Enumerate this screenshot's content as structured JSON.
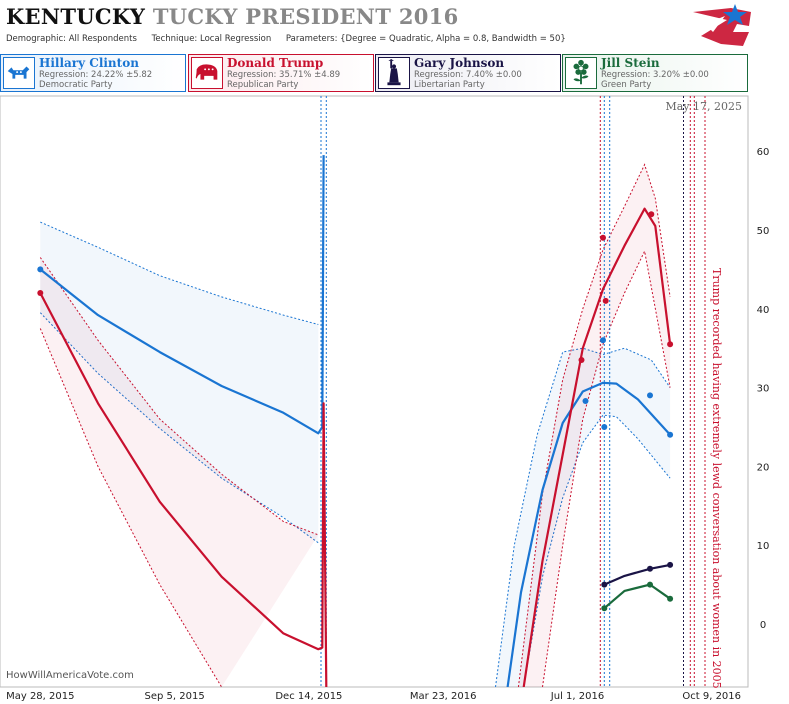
{
  "header": {
    "title_state": "KENTUCKY",
    "title_rest": "TUCKY PRESIDENT 2016",
    "demographic": "Demographic: All Respondents",
    "technique": "Technique: Local Regression",
    "parameters": "Parameters: {Degree = Quadratic, Alpha = 0.8, Bandwidth = 50}"
  },
  "candidates": [
    {
      "name": "Hillary Clinton",
      "regression": "Regression: 24.22% ±5.82",
      "party": "Democratic Party",
      "color": "#1a75d2",
      "bg": "#e8f1fb",
      "icon": "donkey-icon"
    },
    {
      "name": "Donald Trump",
      "regression": "Regression: 35.71% ±4.89",
      "party": "Republican Party",
      "color": "#c8102e",
      "bg": "#fbe9ec",
      "icon": "elephant-icon"
    },
    {
      "name": "Gary Johnson",
      "regression": "Regression: 7.40% ±0.00",
      "party": "Libertarian Party",
      "color": "#1a1446",
      "bg": "#ececf3",
      "icon": "statue-of-liberty-icon"
    },
    {
      "name": "Jill Stein",
      "regression": "Regression: 3.20% ±0.00",
      "party": "Green Party",
      "color": "#1a6b3c",
      "bg": "#e8f3ec",
      "icon": "flower-icon"
    }
  ],
  "chart_meta": {
    "date_label": "May 17, 2025",
    "source": "HowWillAmericaVote.com",
    "annotation": "Trump recorded having extremely lewd conversation about women in 2005",
    "annotation_color": "#c8102e",
    "grid": false
  },
  "chart_data": {
    "type": "line",
    "x_axis": {
      "type": "date",
      "ticks": [
        "May 28, 2015",
        "Sep 5, 2015",
        "Dec 14, 2015",
        "Mar 23, 2016",
        "Jul 1, 2016",
        "Oct 9, 2016"
      ],
      "range": [
        "2015-04-28",
        "2016-11-05"
      ]
    },
    "y_axis": {
      "ticks": [
        0,
        10,
        20,
        30,
        40,
        50,
        60
      ],
      "range": [
        -8,
        67
      ],
      "position": "right"
    },
    "series": [
      {
        "name": "Hillary Clinton",
        "color": "#1a75d2",
        "points": [
          [
            "2015-05-28",
            45
          ],
          [
            "2016-07-07",
            28.3
          ],
          [
            "2016-07-20",
            36
          ],
          [
            "2016-07-21",
            25
          ],
          [
            "2016-08-24",
            29
          ],
          [
            "2016-09-08",
            24
          ]
        ],
        "trend": [
          [
            "2015-05-28",
            45
          ],
          [
            "2015-07-10",
            39.2
          ],
          [
            "2015-08-25",
            34.5
          ],
          [
            "2015-10-10",
            30.2
          ],
          [
            "2015-11-25",
            26.8
          ],
          [
            "2015-12-21",
            24.2
          ],
          [
            "2015-12-24",
            25
          ],
          [
            "2015-12-25",
            59.5
          ]
        ],
        "lower": [
          [
            "2015-05-28",
            39.5
          ],
          [
            "2015-07-10",
            31.8
          ],
          [
            "2015-08-25",
            24.8
          ],
          [
            "2015-10-10",
            18.5
          ],
          [
            "2015-11-25",
            13.5
          ],
          [
            "2015-12-21",
            10.3
          ]
        ],
        "upper": [
          [
            "2015-05-28",
            51
          ],
          [
            "2015-07-10",
            47.8
          ],
          [
            "2015-08-25",
            44.2
          ],
          [
            "2015-10-10",
            41.5
          ],
          [
            "2015-11-25",
            39.2
          ],
          [
            "2015-12-21",
            38
          ]
        ],
        "trend2": [
          [
            "2016-05-10",
            -8
          ],
          [
            "2016-05-20",
            4
          ],
          [
            "2016-06-05",
            17
          ],
          [
            "2016-06-20",
            25.5
          ],
          [
            "2016-07-05",
            29.5
          ],
          [
            "2016-07-20",
            30.6
          ],
          [
            "2016-07-30",
            30.5
          ],
          [
            "2016-08-15",
            28.5
          ],
          [
            "2016-09-08",
            24
          ]
        ],
        "lower2": [
          [
            "2016-05-22",
            -8
          ],
          [
            "2016-06-05",
            6
          ],
          [
            "2016-06-20",
            16
          ],
          [
            "2016-07-05",
            23
          ],
          [
            "2016-07-20",
            26.5
          ],
          [
            "2016-07-30",
            26.3
          ],
          [
            "2016-08-15",
            23.5
          ],
          [
            "2016-09-08",
            18.5
          ]
        ],
        "upper2": [
          [
            "2016-05-01",
            -8
          ],
          [
            "2016-05-15",
            10
          ],
          [
            "2016-06-01",
            24
          ],
          [
            "2016-06-20",
            34.5
          ],
          [
            "2016-07-05",
            35
          ],
          [
            "2016-07-20",
            34.2
          ],
          [
            "2016-08-05",
            35
          ],
          [
            "2016-08-25",
            33.5
          ],
          [
            "2016-09-08",
            30
          ]
        ]
      },
      {
        "name": "Donald Trump",
        "color": "#c8102e",
        "points": [
          [
            "2015-05-28",
            42
          ],
          [
            "2016-07-04",
            33.5
          ],
          [
            "2016-07-20",
            49
          ],
          [
            "2016-07-22",
            41
          ],
          [
            "2016-08-25",
            52
          ],
          [
            "2016-09-08",
            35.5
          ]
        ],
        "trend": [
          [
            "2015-05-28",
            42
          ],
          [
            "2015-07-10",
            28
          ],
          [
            "2015-08-25",
            15.5
          ],
          [
            "2015-10-10",
            6
          ],
          [
            "2015-11-25",
            -1.2
          ],
          [
            "2015-12-21",
            -3.2
          ],
          [
            "2015-12-24",
            -3
          ],
          [
            "2015-12-25",
            28
          ],
          [
            "2015-12-27",
            -8
          ]
        ],
        "lower": [
          [
            "2015-05-28",
            37.5
          ],
          [
            "2015-07-10",
            20
          ],
          [
            "2015-08-25",
            5
          ],
          [
            "2015-10-10",
            -8
          ]
        ],
        "upper": [
          [
            "2015-05-28",
            46.5
          ],
          [
            "2015-07-10",
            36
          ],
          [
            "2015-08-25",
            26
          ],
          [
            "2015-10-10",
            19
          ],
          [
            "2015-11-25",
            13
          ],
          [
            "2015-12-21",
            11.3
          ]
        ],
        "trend2": [
          [
            "2016-05-22",
            -8
          ],
          [
            "2016-06-05",
            8
          ],
          [
            "2016-06-20",
            21.5
          ],
          [
            "2016-07-05",
            35
          ],
          [
            "2016-07-20",
            42.5
          ],
          [
            "2016-08-05",
            48
          ],
          [
            "2016-08-20",
            52.7
          ],
          [
            "2016-08-28",
            50.5
          ],
          [
            "2016-09-08",
            35.5
          ]
        ],
        "lower2": [
          [
            "2016-06-05",
            -8
          ],
          [
            "2016-06-20",
            10
          ],
          [
            "2016-07-05",
            26
          ],
          [
            "2016-07-20",
            35.5
          ],
          [
            "2016-08-05",
            42
          ],
          [
            "2016-08-20",
            47.3
          ],
          [
            "2016-09-08",
            30
          ]
        ],
        "upper2": [
          [
            "2016-05-18",
            -8
          ],
          [
            "2016-06-05",
            16.5
          ],
          [
            "2016-06-20",
            31
          ],
          [
            "2016-07-05",
            40
          ],
          [
            "2016-07-20",
            47.5
          ],
          [
            "2016-08-05",
            53
          ],
          [
            "2016-08-20",
            58.3
          ],
          [
            "2016-08-28",
            54
          ],
          [
            "2016-09-08",
            41.5
          ]
        ]
      },
      {
        "name": "Gary Johnson",
        "color": "#1a1446",
        "points": [
          [
            "2016-07-21",
            5
          ],
          [
            "2016-08-24",
            7
          ],
          [
            "2016-09-08",
            7.5
          ]
        ],
        "trend2": [
          [
            "2016-07-21",
            5
          ],
          [
            "2016-08-05",
            6.1
          ],
          [
            "2016-08-24",
            7
          ],
          [
            "2016-09-08",
            7.5
          ]
        ]
      },
      {
        "name": "Jill Stein",
        "color": "#1a6b3c",
        "points": [
          [
            "2016-07-21",
            2
          ],
          [
            "2016-08-24",
            5
          ],
          [
            "2016-09-08",
            3.2
          ]
        ],
        "trend2": [
          [
            "2016-07-21",
            2
          ],
          [
            "2016-08-05",
            4.2
          ],
          [
            "2016-08-24",
            5
          ],
          [
            "2016-09-08",
            3.2
          ]
        ]
      }
    ],
    "event_lines": [
      {
        "date": "2015-12-23",
        "color": "#1a75d2"
      },
      {
        "date": "2015-12-27",
        "color": "#1a75d2"
      },
      {
        "date": "2016-07-18",
        "color": "#c8102e"
      },
      {
        "date": "2016-07-21",
        "color": "#1a75d2"
      },
      {
        "date": "2016-07-25",
        "color": "#1a75d2"
      },
      {
        "date": "2016-09-18",
        "color": "#1a1446"
      },
      {
        "date": "2016-09-23",
        "color": "#c8102e"
      },
      {
        "date": "2016-09-26",
        "color": "#c8102e"
      },
      {
        "date": "2016-10-04",
        "color": "#c8102e"
      }
    ]
  }
}
